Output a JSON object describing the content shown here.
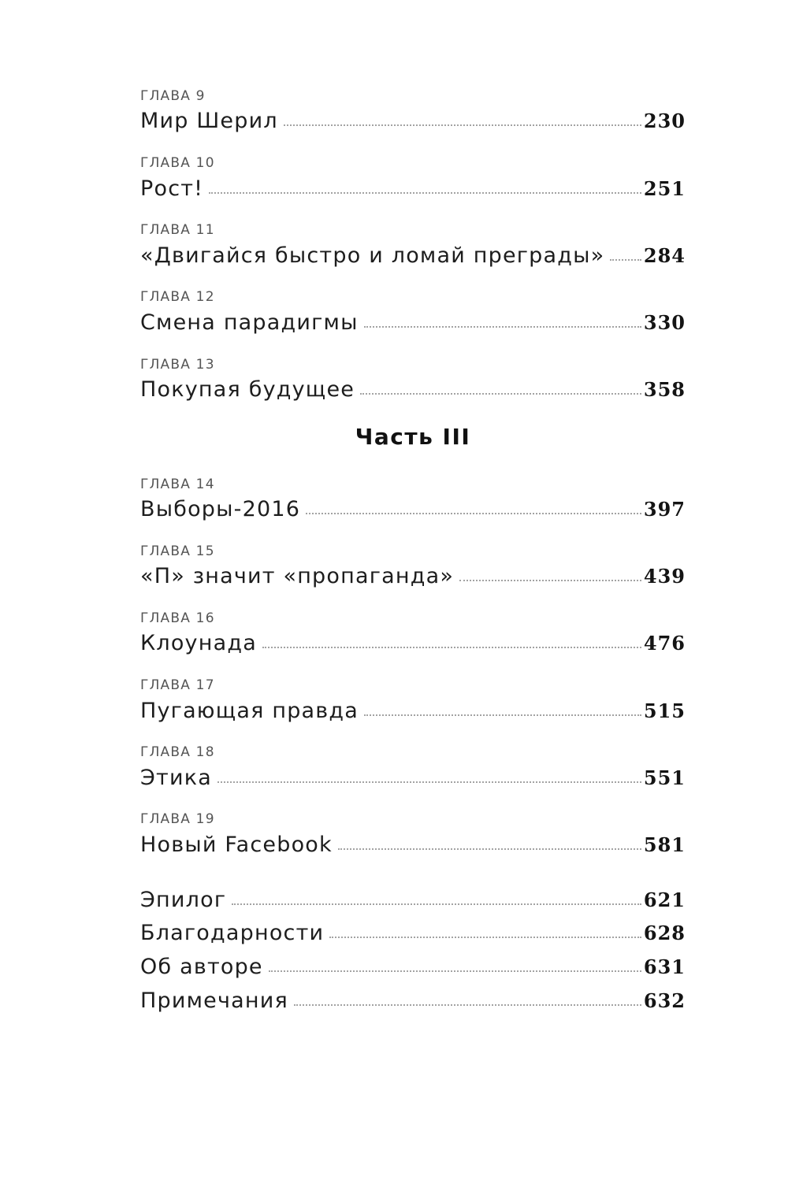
{
  "toc": {
    "part_heading": "Часть III",
    "chapters_9_13": [
      {
        "label": "ГЛАВА 9",
        "title": "Мир Шерил",
        "page": "230"
      },
      {
        "label": "ГЛАВА 10",
        "title": "Рост!",
        "page": "251"
      },
      {
        "label": "ГЛАВА 11",
        "title": "«Двигайся быстро и ломай преграды»",
        "page": "284"
      },
      {
        "label": "ГЛАВА 12",
        "title": "Смена парадигмы",
        "page": "330"
      },
      {
        "label": "ГЛАВА 13",
        "title": "Покупая будущее",
        "page": "358"
      }
    ],
    "chapters_14_19": [
      {
        "label": "ГЛАВА 14",
        "title": "Выборы-2016",
        "page": "397"
      },
      {
        "label": "ГЛАВА 15",
        "title": "«П» значит «пропаганда»",
        "page": "439"
      },
      {
        "label": "ГЛАВА 16",
        "title": "Клоунада",
        "page": "476"
      },
      {
        "label": "ГЛАВА 17",
        "title": "Пугающая правда",
        "page": "515"
      },
      {
        "label": "ГЛАВА 18",
        "title": "Этика",
        "page": "551"
      },
      {
        "label": "ГЛАВА 19",
        "title": "Новый Facebook",
        "page": "581"
      }
    ],
    "endmatter": [
      {
        "title": "Эпилог",
        "page": "621"
      },
      {
        "title": "Благодарности",
        "page": "628"
      },
      {
        "title": "Об авторе",
        "page": "631"
      },
      {
        "title": "Примечания",
        "page": "632"
      }
    ],
    "colors": {
      "background": "#ffffff",
      "title_text": "#1d1d1d",
      "label_text": "#555555",
      "page_number_text": "#141414",
      "leader_dots": "#a3a3a3"
    }
  }
}
